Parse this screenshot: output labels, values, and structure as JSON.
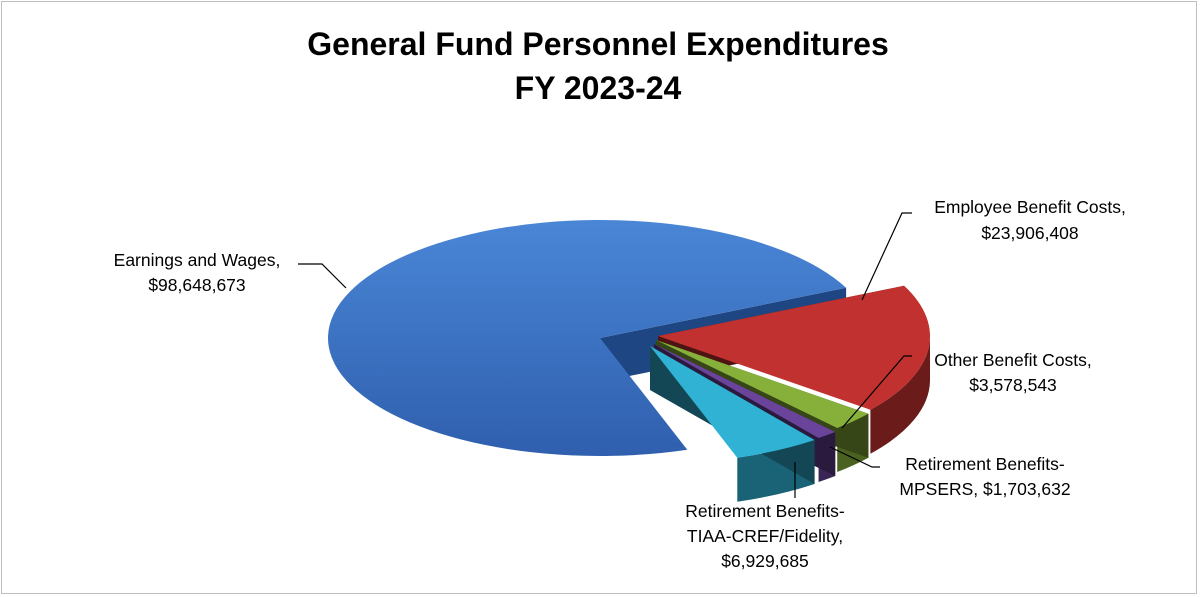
{
  "chart_data": {
    "type": "pie",
    "title": "General Fund Personnel Expenditures",
    "subtitle": "FY 2023-24",
    "slices": [
      {
        "name": "Earnings and Wages",
        "value": 98648673,
        "value_label": "$98,648,673",
        "color": "#3a6fc0"
      },
      {
        "name": "Employee Benefit Costs",
        "value": 23906408,
        "value_label": "$23,906,408",
        "color": "#c0312f"
      },
      {
        "name": "Other Benefit Costs",
        "value": 3578543,
        "value_label": "$3,578,543",
        "color": "#86b03a"
      },
      {
        "name": "Retirement Benefits-MPSERS",
        "value": 1703632,
        "value_label": "$1,703,632",
        "color": "#6a449a"
      },
      {
        "name": "Retirement Benefits-TIAA-CREF/Fidelity",
        "value": 6929685,
        "value_label": "$6,929,685",
        "color": "#2fb2d4"
      }
    ],
    "labels": {
      "earnings_l1": "Earnings and Wages,",
      "earnings_l2": "$98,648,673",
      "employee_l1": "Employee Benefit Costs,",
      "employee_l2": "$23,906,408",
      "other_l1": "Other Benefit Costs,",
      "other_l2": "$3,578,543",
      "mpsers_l1": "Retirement Benefits-",
      "mpsers_l2": "MPSERS, $1,703,632",
      "tiaa_l1": "Retirement Benefits-",
      "tiaa_l2": "TIAA-CREF/Fidelity,",
      "tiaa_l3": "$6,929,685"
    },
    "legend": "none",
    "style": "3d-exploded"
  }
}
